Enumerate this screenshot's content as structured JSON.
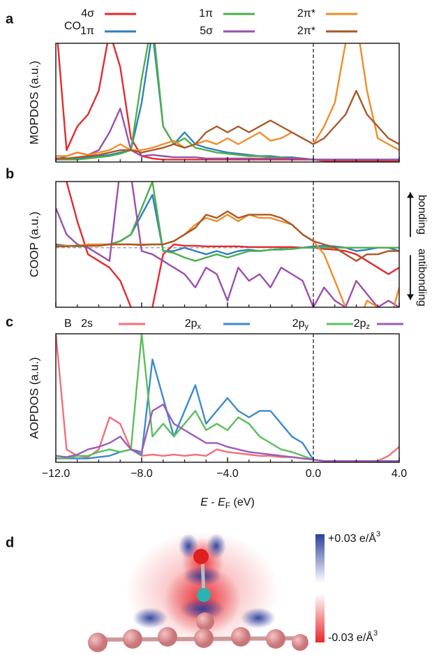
{
  "chart_data": [
    {
      "type": "line",
      "panel_label": "a",
      "ylabel": "MOPDOS (a.u.)",
      "legend_title": "CO",
      "x": [
        -12,
        -11.5,
        -11,
        -10.5,
        -10,
        -9.5,
        -9,
        -8.5,
        -8,
        -7.5,
        -7,
        -6.5,
        -6,
        -5.5,
        -5,
        -4.5,
        -4,
        -3.5,
        -3,
        -2.5,
        -2,
        -1.5,
        -1,
        -0.5,
        0,
        0.5,
        1,
        1.5,
        2,
        2.5,
        3,
        3.5,
        4
      ],
      "xlim": [
        -12,
        4
      ],
      "ylim": [
        0,
        10
      ],
      "xticks": [
        -12,
        -8,
        -4,
        0,
        4
      ],
      "xminorticks": [
        -11,
        -10,
        -9,
        -7,
        -6,
        -5,
        -3,
        -2,
        -1,
        1,
        2,
        3
      ],
      "vline": 0,
      "series": [
        {
          "name": "4σ",
          "color": "#e52a2c",
          "values": [
            12,
            1,
            3,
            4,
            6,
            11,
            8,
            2,
            0.5,
            0.3,
            0.2,
            0.2,
            0.2,
            0.2,
            0.2,
            0.2,
            0.2,
            0.2,
            0.2,
            0.2,
            0.2,
            0.2,
            0.2,
            0.2,
            0.2,
            0.1,
            0.1,
            0.1,
            0.1,
            0.1,
            0.1,
            0.1,
            0.1
          ]
        },
        {
          "name": "1π",
          "color": "#2f7fc1",
          "values": [
            0.3,
            0.3,
            0.3,
            0.4,
            0.5,
            0.6,
            0.8,
            1,
            5,
            11,
            3,
            1.5,
            2.5,
            1.5,
            1.2,
            1,
            0.8,
            0.7,
            0.6,
            0.5,
            0.5,
            0.4,
            0.4,
            0.3,
            0.2,
            0.2,
            0.2,
            0.2,
            0.2,
            0.2,
            0.2,
            0.2,
            0.2
          ]
        },
        {
          "name": "1π",
          "color": "#4daf4a",
          "values": [
            0.2,
            0.2,
            0.2,
            0.3,
            0.4,
            0.5,
            0.7,
            1,
            7,
            12,
            3,
            1.5,
            2,
            1.2,
            1,
            0.8,
            0.7,
            0.6,
            0.5,
            0.5,
            0.4,
            0.4,
            0.3,
            0.3,
            0.2,
            0.2,
            0.2,
            0.2,
            0.2,
            0.2,
            0.2,
            0.2,
            0.2
          ]
        },
        {
          "name": "5σ",
          "color": "#9b4fae",
          "values": [
            0.2,
            0.5,
            0.8,
            0.6,
            1,
            2.5,
            4.5,
            1,
            0.5,
            0.6,
            0.5,
            0.4,
            0.4,
            0.4,
            0.3,
            0.3,
            0.3,
            0.3,
            0.3,
            0.3,
            0.3,
            0.3,
            0.3,
            0.3,
            0.2,
            0.2,
            0.2,
            0.2,
            0.2,
            0.2,
            0.2,
            0.2,
            0.2
          ]
        },
        {
          "name": "2π*",
          "color": "#f28c28",
          "values": [
            0.5,
            0.5,
            0.8,
            0.6,
            0.8,
            1,
            1.5,
            1,
            1,
            1.2,
            1.5,
            1.8,
            1.2,
            1.5,
            1.8,
            1.5,
            2,
            1.5,
            2,
            2.5,
            1.8,
            2,
            2.5,
            2,
            1.5,
            3,
            5,
            10,
            12,
            6,
            2,
            1.5,
            1
          ]
        },
        {
          "name": "2π*",
          "color": "#a8582a",
          "values": [
            0.3,
            0.3,
            0.4,
            0.5,
            0.6,
            0.8,
            1,
            1,
            0.8,
            1,
            1.2,
            1.5,
            1.2,
            1.5,
            2.5,
            3,
            2.5,
            3,
            2.5,
            3,
            3.5,
            3,
            2.5,
            2,
            1.5,
            2,
            3,
            4,
            6,
            4,
            3,
            2,
            1.5
          ]
        }
      ]
    },
    {
      "type": "line",
      "panel_label": "b",
      "ylabel": "COOP (a.u.)",
      "annotations": [
        "bonding",
        "antibonding"
      ],
      "x": [
        -12,
        -11.5,
        -11,
        -10.5,
        -10,
        -9.5,
        -9,
        -8.5,
        -8,
        -7.5,
        -7,
        -6.5,
        -6,
        -5.5,
        -5,
        -4.5,
        -4,
        -3.5,
        -3,
        -2.5,
        -2,
        -1.5,
        -1,
        -0.5,
        0,
        0.5,
        1,
        1.5,
        2,
        2.5,
        3,
        3.5,
        4
      ],
      "xlim": [
        -12,
        4
      ],
      "ylim": [
        -9,
        10
      ],
      "xticks": [
        -12,
        -8,
        -4,
        0,
        4
      ],
      "xminorticks": [
        -11,
        -10,
        -9,
        -7,
        -6,
        -5,
        -3,
        -2,
        -1,
        1,
        2,
        3
      ],
      "vline": 0,
      "hline": 0,
      "series": [
        {
          "color": "#e52a2c",
          "values": [
            12,
            10,
            4,
            -1,
            -2,
            -3,
            -5,
            -9,
            -12,
            -9,
            -1,
            0.5,
            0.3,
            0.3,
            0.2,
            0.2,
            0.2,
            0.2,
            0.1,
            0.1,
            0.1,
            0.1,
            0.1,
            0,
            0,
            -0.2,
            -0.3,
            -0.5,
            -1,
            -2,
            -3,
            -4,
            -3
          ]
        },
        {
          "color": "#2f7fc1",
          "values": [
            0.5,
            0.3,
            0.2,
            0.3,
            0.5,
            0.5,
            1,
            2,
            5,
            8,
            -0.5,
            -0.5,
            0,
            -0.5,
            -1,
            -0.5,
            -1,
            -0.5,
            -0.3,
            -0.5,
            -0.3,
            -0.2,
            -0.2,
            0,
            0.2,
            0.3,
            0.2,
            0,
            -0.5,
            -0.3,
            0,
            0,
            -0.5
          ]
        },
        {
          "color": "#4daf4a",
          "values": [
            0.2,
            0.3,
            0.2,
            0.3,
            0.3,
            0.5,
            1,
            2,
            6,
            10,
            -0.5,
            -0.8,
            -1.5,
            -2,
            -1.5,
            -1,
            -1.5,
            -1,
            -0.5,
            -0.5,
            -0.3,
            -0.3,
            -0.2,
            0,
            0,
            0,
            0,
            0,
            0,
            0,
            0,
            0,
            0
          ]
        },
        {
          "color": "#9b4fae",
          "values": [
            6,
            2,
            0.5,
            0,
            -1,
            -2,
            12,
            11,
            -0.5,
            -1,
            -2,
            -3,
            -4,
            -6,
            -3,
            -4,
            -8,
            -3,
            -5,
            -4,
            -6,
            -3,
            -4,
            -5,
            -9,
            -6,
            -8,
            -9,
            -5,
            -7,
            -9,
            -8,
            -9
          ]
        },
        {
          "color": "#f28c28",
          "values": [
            0.3,
            0.3,
            0.3,
            0.5,
            0.5,
            0.5,
            0.5,
            0.5,
            0.5,
            0.5,
            0.5,
            1,
            2,
            3.5,
            4.5,
            4,
            5,
            4,
            5,
            4.5,
            4.5,
            4,
            3.5,
            2,
            1,
            -1,
            -5,
            -9,
            -12,
            -8,
            -9,
            -12,
            -6
          ]
        },
        {
          "color": "#a8582a",
          "values": [
            0.2,
            0.2,
            0.3,
            0.3,
            0.3,
            0.5,
            0.5,
            0.5,
            0.4,
            0.5,
            0.5,
            1,
            2,
            3,
            5,
            4.5,
            5.5,
            4.5,
            5,
            5,
            5,
            4.5,
            3.5,
            2,
            1,
            0.5,
            0,
            -1,
            -2,
            -1,
            -1,
            -0.5,
            -0.5
          ]
        }
      ]
    },
    {
      "type": "line",
      "panel_label": "c",
      "ylabel": "AOPDOS (a.u.)",
      "legend_title": "B",
      "xlabel": [
        "E",
        " - ",
        "E",
        "F",
        " (eV)"
      ],
      "x": [
        -12,
        -11.5,
        -11,
        -10.5,
        -10,
        -9.5,
        -9,
        -8.5,
        -8,
        -7.5,
        -7,
        -6.5,
        -6,
        -5.5,
        -5,
        -4.5,
        -4,
        -3.5,
        -3,
        -2.5,
        -2,
        -1.5,
        -1,
        -0.5,
        0,
        0.5,
        1,
        1.5,
        2,
        2.5,
        3,
        3.5,
        4
      ],
      "xlim": [
        -12,
        4
      ],
      "ylim": [
        0,
        10
      ],
      "xticks": [
        {
          "value": -12,
          "label": "−12.0"
        },
        {
          "value": -8,
          "label": "−8.0"
        },
        {
          "value": -4,
          "label": "−4.0"
        },
        {
          "value": 0,
          "label": "0.0"
        },
        {
          "value": 4,
          "label": "4.0"
        }
      ],
      "xminorticks": [
        -11,
        -10,
        -9,
        -7,
        -6,
        -5,
        -3,
        -2,
        -1,
        1,
        2,
        3
      ],
      "vline": 0,
      "series": [
        {
          "name": "2s",
          "color": "#f0707a",
          "values": [
            10,
            1,
            0.5,
            0.4,
            1,
            3.5,
            3,
            1,
            0.5,
            0.6,
            0.5,
            0.6,
            0.5,
            0.6,
            0.5,
            1,
            0.8,
            0.7,
            0.6,
            0.5,
            0.5,
            0.4,
            0.4,
            0.3,
            0.2,
            0.1,
            0.1,
            0.1,
            0.1,
            0.1,
            0.1,
            0.5,
            1.2
          ]
        },
        {
          "name": "2p",
          "subscript": "x",
          "color": "#3b8bcb",
          "values": [
            0.3,
            0.3,
            0.3,
            0.3,
            0.4,
            0.5,
            0.8,
            1,
            0.6,
            8,
            5,
            2,
            4,
            6,
            3,
            4,
            5,
            4,
            3.5,
            4,
            4,
            3,
            2,
            1.5,
            0.2,
            0.1,
            0.1,
            0.1,
            0.1,
            0.1,
            0.1,
            0.1,
            0.1
          ]
        },
        {
          "name": "2p",
          "subscript": "y",
          "color": "#5bbf5b",
          "values": [
            0.3,
            0.3,
            0.5,
            0.5,
            0.8,
            1,
            0.8,
            1,
            10,
            2,
            3,
            2,
            3,
            4,
            2.5,
            3,
            2.5,
            3.5,
            3,
            2,
            1.5,
            1,
            0.8,
            0.5,
            0.2,
            0.1,
            0.1,
            0.1,
            0.1,
            0.1,
            0.1,
            0.1,
            0.1
          ]
        },
        {
          "name": "2p",
          "subscript": "z",
          "color": "#9e5bb8",
          "values": [
            0.5,
            0.4,
            0.6,
            1,
            1.2,
            1.5,
            2,
            1,
            0.8,
            4,
            4.5,
            3,
            2.5,
            2,
            1.5,
            1.5,
            1.2,
            1,
            0.8,
            0.7,
            0.6,
            0.5,
            0.4,
            0.3,
            0.2,
            0.1,
            0.1,
            0.1,
            0.1,
            0.1,
            0.1,
            0.1,
            0.1
          ]
        }
      ]
    }
  ],
  "panel_d": {
    "label": "d",
    "colorbar_max": "+0.03 e/Å",
    "colorbar_min": "-0.03 e/Å",
    "power": "3"
  }
}
